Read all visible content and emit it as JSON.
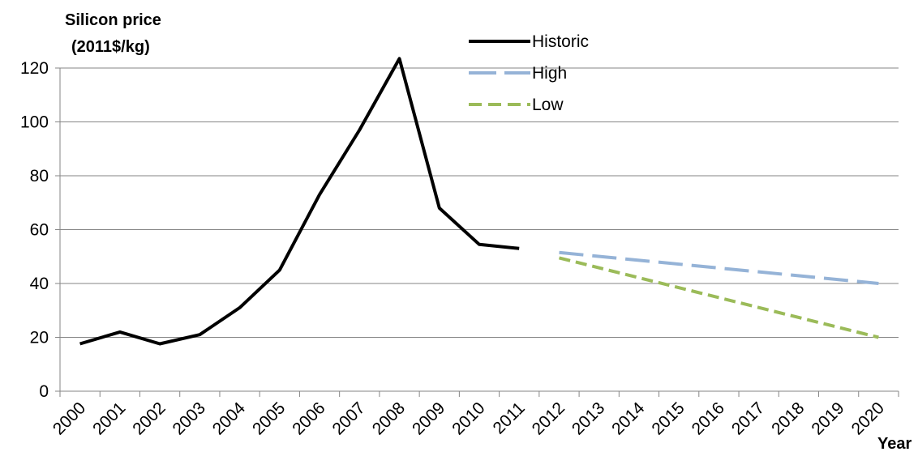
{
  "chart_data": {
    "type": "line",
    "title": "",
    "ylabel_lines": [
      "Silicon price",
      "(2011$/kg)"
    ],
    "xlabel": "Year",
    "ylim": [
      0,
      120
    ],
    "yticks": [
      0,
      20,
      40,
      60,
      80,
      100,
      120
    ],
    "grid": "horizontal",
    "legend_position": "top-center",
    "categories": [
      "2000",
      "2001",
      "2002",
      "2003",
      "2004",
      "2005",
      "2006",
      "2007",
      "2008",
      "2009",
      "2010",
      "2011",
      "2012",
      "2013",
      "2014",
      "2015",
      "2016",
      "2017",
      "2018",
      "2019",
      "2020"
    ],
    "series": [
      {
        "name": "Historic",
        "color": "#000000",
        "dash": "solid",
        "x": [
          "2000",
          "2001",
          "2002",
          "2003",
          "2004",
          "2005",
          "2006",
          "2007",
          "2008",
          "2009",
          "2010",
          "2011"
        ],
        "values": [
          17.6,
          22,
          17.6,
          21,
          31,
          45,
          73,
          97,
          123.5,
          68,
          54.5,
          53
        ]
      },
      {
        "name": "High",
        "color": "#95b3d7",
        "dash": "long-dash",
        "x": [
          "2012",
          "2020"
        ],
        "values": [
          51.5,
          40
        ]
      },
      {
        "name": "Low",
        "color": "#9bbb59",
        "dash": "short-dash",
        "x": [
          "2012",
          "2020"
        ],
        "values": [
          49.5,
          20
        ]
      }
    ]
  }
}
